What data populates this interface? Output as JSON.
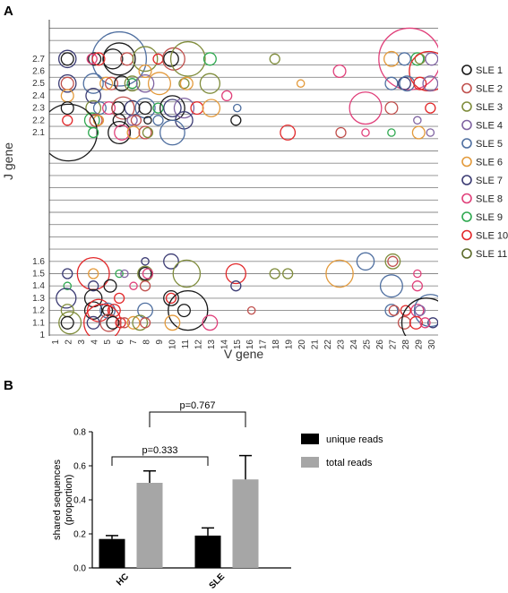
{
  "panels": {
    "a_label": "A",
    "b_label": "B"
  },
  "colors": {
    "SLE 1": "#1a1a1a",
    "SLE 2": "#c0504d",
    "SLE 3": "#7f8c3b",
    "SLE 4": "#8064a2",
    "SLE 5": "#4f6fa0",
    "SLE 6": "#e39a3b",
    "SLE 7": "#3b3b73",
    "SLE 8": "#e0407a",
    "SLE 9": "#2ea84f",
    "SLE 10": "#e2282a",
    "SLE 11": "#5c6b2a"
  },
  "chart_data": [
    {
      "type": "scatter",
      "xlabel": "V gene",
      "ylabel": "J gene",
      "x_ticks": [
        "1",
        "2",
        "3",
        "4",
        "5",
        "6",
        "7",
        "8",
        "9",
        "10",
        "11",
        "12",
        "13",
        "14",
        "15",
        "16",
        "17",
        "18",
        "19",
        "20",
        "21",
        "22",
        "23",
        "24",
        "25",
        "26",
        "27",
        "28",
        "29",
        "30"
      ],
      "y_ticks_upper": [
        "2.1",
        "2.2",
        "2.3",
        "2.4",
        "2.5",
        "2.6",
        "2.7"
      ],
      "y_ticks_lower": [
        "1",
        "1.1",
        "1.2",
        "1.3",
        "1.4",
        "1.5",
        "1.6"
      ],
      "legend": [
        "SLE 1",
        "SLE 2",
        "SLE 3",
        "SLE 4",
        "SLE 5",
        "SLE 6",
        "SLE 7",
        "SLE 8",
        "SLE 9",
        "SLE 10",
        "SLE 11"
      ],
      "points": [
        {
          "s": "SLE 5",
          "x": 5.9,
          "y": "2.7",
          "r": 2.2
        },
        {
          "s": "SLE 1",
          "x": 5.9,
          "y": "2.7",
          "r": 1.3
        },
        {
          "s": "SLE 1",
          "x": 5.4,
          "y": "2.7",
          "r": 0.8
        },
        {
          "s": "SLE 1",
          "x": 1.9,
          "y": "2.7",
          "r": 0.5
        },
        {
          "s": "SLE 7",
          "x": 1.9,
          "y": "2.7",
          "r": 0.7
        },
        {
          "s": "SLE 1",
          "x": 4.0,
          "y": "2.7",
          "r": 0.5
        },
        {
          "s": "SLE 10",
          "x": 4.3,
          "y": "2.7",
          "r": 0.5
        },
        {
          "s": "SLE 8",
          "x": 3.8,
          "y": "2.7",
          "r": 0.4
        },
        {
          "s": "SLE 2",
          "x": 6.5,
          "y": "2.7",
          "r": 0.5
        },
        {
          "s": "SLE 3",
          "x": 7.9,
          "y": "2.7",
          "r": 1.0
        },
        {
          "s": "SLE 10",
          "x": 8.9,
          "y": "2.7",
          "r": 0.4
        },
        {
          "s": "SLE 1",
          "x": 9.9,
          "y": "2.7",
          "r": 0.6
        },
        {
          "s": "SLE 2",
          "x": 10.1,
          "y": "2.7",
          "r": 0.9
        },
        {
          "s": "SLE 3",
          "x": 11.2,
          "y": "2.7",
          "r": 1.4
        },
        {
          "s": "SLE 9",
          "x": 12.9,
          "y": "2.7",
          "r": 0.5
        },
        {
          "s": "SLE 3",
          "x": 17.9,
          "y": "2.7",
          "r": 0.4
        },
        {
          "s": "SLE 6",
          "x": 26.9,
          "y": "2.7",
          "r": 0.6
        },
        {
          "s": "SLE 5",
          "x": 27.9,
          "y": "2.7",
          "r": 0.5
        },
        {
          "s": "SLE 8",
          "x": 28.3,
          "y": "2.7",
          "r": 2.5
        },
        {
          "s": "SLE 9",
          "x": 28.9,
          "y": "2.7",
          "r": 0.5
        },
        {
          "s": "SLE 3",
          "x": 29.1,
          "y": "2.7",
          "r": 0.4
        },
        {
          "s": "SLE 4",
          "x": 30.0,
          "y": "2.7",
          "r": 0.5
        },
        {
          "s": "SLE 6",
          "x": 7.9,
          "y": "2.6",
          "r": 0.5
        },
        {
          "s": "SLE 8",
          "x": 22.9,
          "y": "2.6",
          "r": 0.5
        },
        {
          "s": "SLE 10",
          "x": 29.8,
          "y": "2.6",
          "r": 1.6
        },
        {
          "s": "SLE 7",
          "x": 1.9,
          "y": "2.5",
          "r": 0.7
        },
        {
          "s": "SLE 2",
          "x": 1.9,
          "y": "2.5",
          "r": 0.5
        },
        {
          "s": "SLE 5",
          "x": 3.9,
          "y": "2.5",
          "r": 0.8
        },
        {
          "s": "SLE 6",
          "x": 4.9,
          "y": "2.5",
          "r": 0.5
        },
        {
          "s": "SLE 2",
          "x": 5.3,
          "y": "2.5",
          "r": 0.5
        },
        {
          "s": "SLE 1",
          "x": 6.1,
          "y": "2.5",
          "r": 0.6
        },
        {
          "s": "SLE 9",
          "x": 6.9,
          "y": "2.5",
          "r": 0.4
        },
        {
          "s": "SLE 3",
          "x": 6.9,
          "y": "2.5",
          "r": 0.6
        },
        {
          "s": "SLE 4",
          "x": 7.9,
          "y": "2.5",
          "r": 0.7
        },
        {
          "s": "SLE 6",
          "x": 9.0,
          "y": "2.5",
          "r": 0.9
        },
        {
          "s": "SLE 3",
          "x": 10.9,
          "y": "2.5",
          "r": 0.4
        },
        {
          "s": "SLE 6",
          "x": 11.1,
          "y": "2.5",
          "r": 0.5
        },
        {
          "s": "SLE 3",
          "x": 12.9,
          "y": "2.5",
          "r": 0.8
        },
        {
          "s": "SLE 6",
          "x": 19.9,
          "y": "2.5",
          "r": 0.3
        },
        {
          "s": "SLE 5",
          "x": 26.9,
          "y": "2.5",
          "r": 0.5
        },
        {
          "s": "SLE 7",
          "x": 27.9,
          "y": "2.5",
          "r": 0.5
        },
        {
          "s": "SLE 5",
          "x": 28.1,
          "y": "2.5",
          "r": 0.6
        },
        {
          "s": "SLE 10",
          "x": 29.1,
          "y": "2.5",
          "r": 0.5
        },
        {
          "s": "SLE 4",
          "x": 29.9,
          "y": "2.5",
          "r": 0.6
        },
        {
          "s": "SLE 6",
          "x": 1.9,
          "y": "2.4",
          "r": 0.5
        },
        {
          "s": "SLE 7",
          "x": 3.9,
          "y": "2.4",
          "r": 0.6
        },
        {
          "s": "SLE 8",
          "x": 14.2,
          "y": "2.4",
          "r": 0.4
        },
        {
          "s": "SLE 1",
          "x": 1.9,
          "y": "2.3",
          "r": 0.5
        },
        {
          "s": "SLE 3",
          "x": 3.9,
          "y": "2.3",
          "r": 0.6
        },
        {
          "s": "SLE 5",
          "x": 4.4,
          "y": "2.3",
          "r": 0.5
        },
        {
          "s": "SLE 8",
          "x": 5.1,
          "y": "2.3",
          "r": 0.5
        },
        {
          "s": "SLE 1",
          "x": 5.8,
          "y": "2.3",
          "r": 0.5
        },
        {
          "s": "SLE 2",
          "x": 6.2,
          "y": "2.3",
          "r": 0.9
        },
        {
          "s": "SLE 7",
          "x": 6.9,
          "y": "2.3",
          "r": 0.6
        },
        {
          "s": "SLE 5",
          "x": 7.9,
          "y": "2.3",
          "r": 0.8
        },
        {
          "s": "SLE 1",
          "x": 7.9,
          "y": "2.3",
          "r": 0.5
        },
        {
          "s": "SLE 9",
          "x": 8.9,
          "y": "2.3",
          "r": 0.4
        },
        {
          "s": "SLE 1",
          "x": 10.0,
          "y": "2.3",
          "r": 1.0
        },
        {
          "s": "SLE 7",
          "x": 10.0,
          "y": "2.3",
          "r": 0.7
        },
        {
          "s": "SLE 4",
          "x": 10.9,
          "y": "2.3",
          "r": 0.8
        },
        {
          "s": "SLE 10",
          "x": 11.9,
          "y": "2.3",
          "r": 0.5
        },
        {
          "s": "SLE 6",
          "x": 13.0,
          "y": "2.3",
          "r": 0.7
        },
        {
          "s": "SLE 5",
          "x": 15.0,
          "y": "2.3",
          "r": 0.3
        },
        {
          "s": "SLE 8",
          "x": 24.9,
          "y": "2.3",
          "r": 1.3
        },
        {
          "s": "SLE 2",
          "x": 26.9,
          "y": "2.3",
          "r": 0.5
        },
        {
          "s": "SLE 10",
          "x": 29.9,
          "y": "2.3",
          "r": 0.4
        },
        {
          "s": "SLE 10",
          "x": 1.9,
          "y": "2.2",
          "r": 0.4
        },
        {
          "s": "SLE 9",
          "x": 3.8,
          "y": "2.2",
          "r": 0.6
        },
        {
          "s": "SLE 2",
          "x": 4.1,
          "y": "2.2",
          "r": 0.5
        },
        {
          "s": "SLE 6",
          "x": 4.3,
          "y": "2.2",
          "r": 0.4
        },
        {
          "s": "SLE 1",
          "x": 5.9,
          "y": "2.2",
          "r": 0.5
        },
        {
          "s": "SLE 4",
          "x": 6.9,
          "y": "2.2",
          "r": 0.4
        },
        {
          "s": "SLE 2",
          "x": 7.2,
          "y": "2.2",
          "r": 0.4
        },
        {
          "s": "SLE 1",
          "x": 8.1,
          "y": "2.2",
          "r": 0.3
        },
        {
          "s": "SLE 5",
          "x": 8.9,
          "y": "2.2",
          "r": 0.4
        },
        {
          "s": "SLE 7",
          "x": 10.9,
          "y": "2.2",
          "r": 0.7
        },
        {
          "s": "SLE 1",
          "x": 14.9,
          "y": "2.2",
          "r": 0.4
        },
        {
          "s": "SLE 4",
          "x": 28.9,
          "y": "2.2",
          "r": 0.3
        },
        {
          "s": "SLE 1",
          "x": 2.0,
          "y": "2.1",
          "r": 2.3
        },
        {
          "s": "SLE 9",
          "x": 3.9,
          "y": "2.1",
          "r": 0.4
        },
        {
          "s": "SLE 1",
          "x": 5.9,
          "y": "2.1",
          "r": 0.9
        },
        {
          "s": "SLE 8",
          "x": 6.1,
          "y": "2.1",
          "r": 0.6
        },
        {
          "s": "SLE 6",
          "x": 7.0,
          "y": "2.1",
          "r": 0.5
        },
        {
          "s": "SLE 2",
          "x": 7.9,
          "y": "2.1",
          "r": 0.5
        },
        {
          "s": "SLE 3",
          "x": 8.1,
          "y": "2.1",
          "r": 0.4
        },
        {
          "s": "SLE 5",
          "x": 10.0,
          "y": "2.1",
          "r": 1.0
        },
        {
          "s": "SLE 10",
          "x": 18.9,
          "y": "2.1",
          "r": 0.6
        },
        {
          "s": "SLE 2",
          "x": 23.0,
          "y": "2.1",
          "r": 0.4
        },
        {
          "s": "SLE 8",
          "x": 24.9,
          "y": "2.1",
          "r": 0.3
        },
        {
          "s": "SLE 9",
          "x": 26.9,
          "y": "2.1",
          "r": 0.3
        },
        {
          "s": "SLE 6",
          "x": 29.0,
          "y": "2.1",
          "r": 0.5
        },
        {
          "s": "SLE 4",
          "x": 29.9,
          "y": "2.1",
          "r": 0.3
        },
        {
          "s": "SLE 7",
          "x": 7.9,
          "y": "1.6",
          "r": 0.3
        },
        {
          "s": "SLE 7",
          "x": 9.9,
          "y": "1.6",
          "r": 0.6
        },
        {
          "s": "SLE 5",
          "x": 24.9,
          "y": "1.6",
          "r": 0.7
        },
        {
          "s": "SLE 3",
          "x": 27.0,
          "y": "1.6",
          "r": 0.6
        },
        {
          "s": "SLE 2",
          "x": 27.0,
          "y": "1.6",
          "r": 0.4
        },
        {
          "s": "SLE 7",
          "x": 1.9,
          "y": "1.5",
          "r": 0.4
        },
        {
          "s": "SLE 10",
          "x": 3.9,
          "y": "1.5",
          "r": 1.3
        },
        {
          "s": "SLE 6",
          "x": 3.9,
          "y": "1.5",
          "r": 0.4
        },
        {
          "s": "SLE 9",
          "x": 5.9,
          "y": "1.5",
          "r": 0.3
        },
        {
          "s": "SLE 4",
          "x": 6.3,
          "y": "1.5",
          "r": 0.3
        },
        {
          "s": "SLE 3",
          "x": 7.9,
          "y": "1.5",
          "r": 0.6
        },
        {
          "s": "SLE 1",
          "x": 7.9,
          "y": "1.5",
          "r": 0.5
        },
        {
          "s": "SLE 8",
          "x": 8.1,
          "y": "1.5",
          "r": 0.4
        },
        {
          "s": "SLE 3",
          "x": 11.1,
          "y": "1.5",
          "r": 1.1
        },
        {
          "s": "SLE 10",
          "x": 14.9,
          "y": "1.5",
          "r": 0.8
        },
        {
          "s": "SLE 3",
          "x": 17.9,
          "y": "1.5",
          "r": 0.4
        },
        {
          "s": "SLE 3",
          "x": 18.9,
          "y": "1.5",
          "r": 0.4
        },
        {
          "s": "SLE 6",
          "x": 22.9,
          "y": "1.5",
          "r": 1.1
        },
        {
          "s": "SLE 8",
          "x": 28.9,
          "y": "1.5",
          "r": 0.3
        },
        {
          "s": "SLE 9",
          "x": 1.9,
          "y": "1.4",
          "r": 0.3
        },
        {
          "s": "SLE 7",
          "x": 3.9,
          "y": "1.4",
          "r": 0.4
        },
        {
          "s": "SLE 1",
          "x": 5.2,
          "y": "1.4",
          "r": 0.5
        },
        {
          "s": "SLE 8",
          "x": 7.0,
          "y": "1.4",
          "r": 0.3
        },
        {
          "s": "SLE 2",
          "x": 7.9,
          "y": "1.4",
          "r": 0.4
        },
        {
          "s": "SLE 7",
          "x": 14.9,
          "y": "1.4",
          "r": 0.4
        },
        {
          "s": "SLE 5",
          "x": 26.9,
          "y": "1.4",
          "r": 0.9
        },
        {
          "s": "SLE 8",
          "x": 28.9,
          "y": "1.4",
          "r": 0.4
        },
        {
          "s": "SLE 7",
          "x": 1.8,
          "y": "1.3",
          "r": 0.8
        },
        {
          "s": "SLE 1",
          "x": 3.9,
          "y": "1.3",
          "r": 0.7
        },
        {
          "s": "SLE 10",
          "x": 5.9,
          "y": "1.3",
          "r": 0.4
        },
        {
          "s": "SLE 1",
          "x": 9.9,
          "y": "1.3",
          "r": 0.6
        },
        {
          "s": "SLE 10",
          "x": 9.9,
          "y": "1.3",
          "r": 0.4
        },
        {
          "s": "SLE 3",
          "x": 1.9,
          "y": "1.2",
          "r": 0.5
        },
        {
          "s": "SLE 1",
          "x": 3.9,
          "y": "1.2",
          "r": 0.7
        },
        {
          "s": "SLE 10",
          "x": 4.3,
          "y": "1.2",
          "r": 0.9
        },
        {
          "s": "SLE 5",
          "x": 5.0,
          "y": "1.2",
          "r": 0.6
        },
        {
          "s": "SLE 10",
          "x": 5.5,
          "y": "1.2",
          "r": 0.5
        },
        {
          "s": "SLE 1",
          "x": 5.0,
          "y": "1.2",
          "r": 0.4
        },
        {
          "s": "SLE 5",
          "x": 7.9,
          "y": "1.2",
          "r": 0.6
        },
        {
          "s": "SLE 1",
          "x": 11.2,
          "y": "1.2",
          "r": 1.6
        },
        {
          "s": "SLE 1",
          "x": 10.9,
          "y": "1.2",
          "r": 0.5
        },
        {
          "s": "SLE 2",
          "x": 16.1,
          "y": "1.2",
          "r": 0.3
        },
        {
          "s": "SLE 5",
          "x": 26.9,
          "y": "1.2",
          "r": 0.5
        },
        {
          "s": "SLE 2",
          "x": 27.1,
          "y": "1.2",
          "r": 0.4
        },
        {
          "s": "SLE 8",
          "x": 28.9,
          "y": "1.2",
          "r": 0.5
        },
        {
          "s": "SLE 4",
          "x": 29.1,
          "y": "1.2",
          "r": 0.4
        },
        {
          "s": "SLE 5",
          "x": 29.9,
          "y": "1.2",
          "r": 1.3
        },
        {
          "s": "SLE 10",
          "x": 28.0,
          "y": "1.2",
          "r": 0.4
        },
        {
          "s": "SLE 1",
          "x": 1.9,
          "y": "1.1",
          "r": 0.5
        },
        {
          "s": "SLE 3",
          "x": 2.1,
          "y": "1.1",
          "r": 0.9
        },
        {
          "s": "SLE 7",
          "x": 3.9,
          "y": "1.1",
          "r": 0.5
        },
        {
          "s": "SLE 10",
          "x": 4.6,
          "y": "1.1",
          "r": 1.5
        },
        {
          "s": "SLE 2",
          "x": 5.1,
          "y": "1.1",
          "r": 0.7
        },
        {
          "s": "SLE 1",
          "x": 5.4,
          "y": "1.1",
          "r": 0.5
        },
        {
          "s": "SLE 10",
          "x": 6.0,
          "y": "1.1",
          "r": 0.4
        },
        {
          "s": "SLE 2",
          "x": 6.3,
          "y": "1.1",
          "r": 0.4
        },
        {
          "s": "SLE 6",
          "x": 7.0,
          "y": "1.1",
          "r": 0.5
        },
        {
          "s": "SLE 3",
          "x": 7.5,
          "y": "1.1",
          "r": 0.6
        },
        {
          "s": "SLE 2",
          "x": 7.9,
          "y": "1.1",
          "r": 0.4
        },
        {
          "s": "SLE 6",
          "x": 10.0,
          "y": "1.1",
          "r": 0.6
        },
        {
          "s": "SLE 8",
          "x": 12.9,
          "y": "1.1",
          "r": 0.6
        },
        {
          "s": "SLE 2",
          "x": 27.9,
          "y": "1.1",
          "r": 0.5
        },
        {
          "s": "SLE 10",
          "x": 28.8,
          "y": "1.1",
          "r": 0.5
        },
        {
          "s": "SLE 1",
          "x": 29.6,
          "y": "1.1",
          "r": 2.0
        },
        {
          "s": "SLE 7",
          "x": 30.1,
          "y": "1.1",
          "r": 0.4
        },
        {
          "s": "SLE 8",
          "x": 29.5,
          "y": "1.1",
          "r": 0.4
        }
      ]
    },
    {
      "type": "bar",
      "ylabel": "shared sequences\n(proportion)",
      "categories": [
        "HC",
        "SLE"
      ],
      "series": [
        {
          "name": "unique reads",
          "values": [
            0.17,
            0.19
          ],
          "errors": [
            0.02,
            0.045
          ],
          "color": "#000000"
        },
        {
          "name": "total reads",
          "values": [
            0.5,
            0.52
          ],
          "errors": [
            0.07,
            0.14
          ],
          "color": "#a6a6a6"
        }
      ],
      "ylim": [
        0,
        0.8
      ],
      "y_ticks": [
        "0.0",
        "0.2",
        "0.4",
        "0.6",
        "0.8"
      ],
      "annotations": [
        {
          "label": "p=0.333",
          "between": [
            "HC unique reads",
            "SLE unique reads"
          ]
        },
        {
          "label": "p=0.767",
          "between": [
            "HC total reads",
            "SLE total reads"
          ]
        }
      ],
      "legend": [
        "unique reads",
        "total reads"
      ]
    }
  ]
}
